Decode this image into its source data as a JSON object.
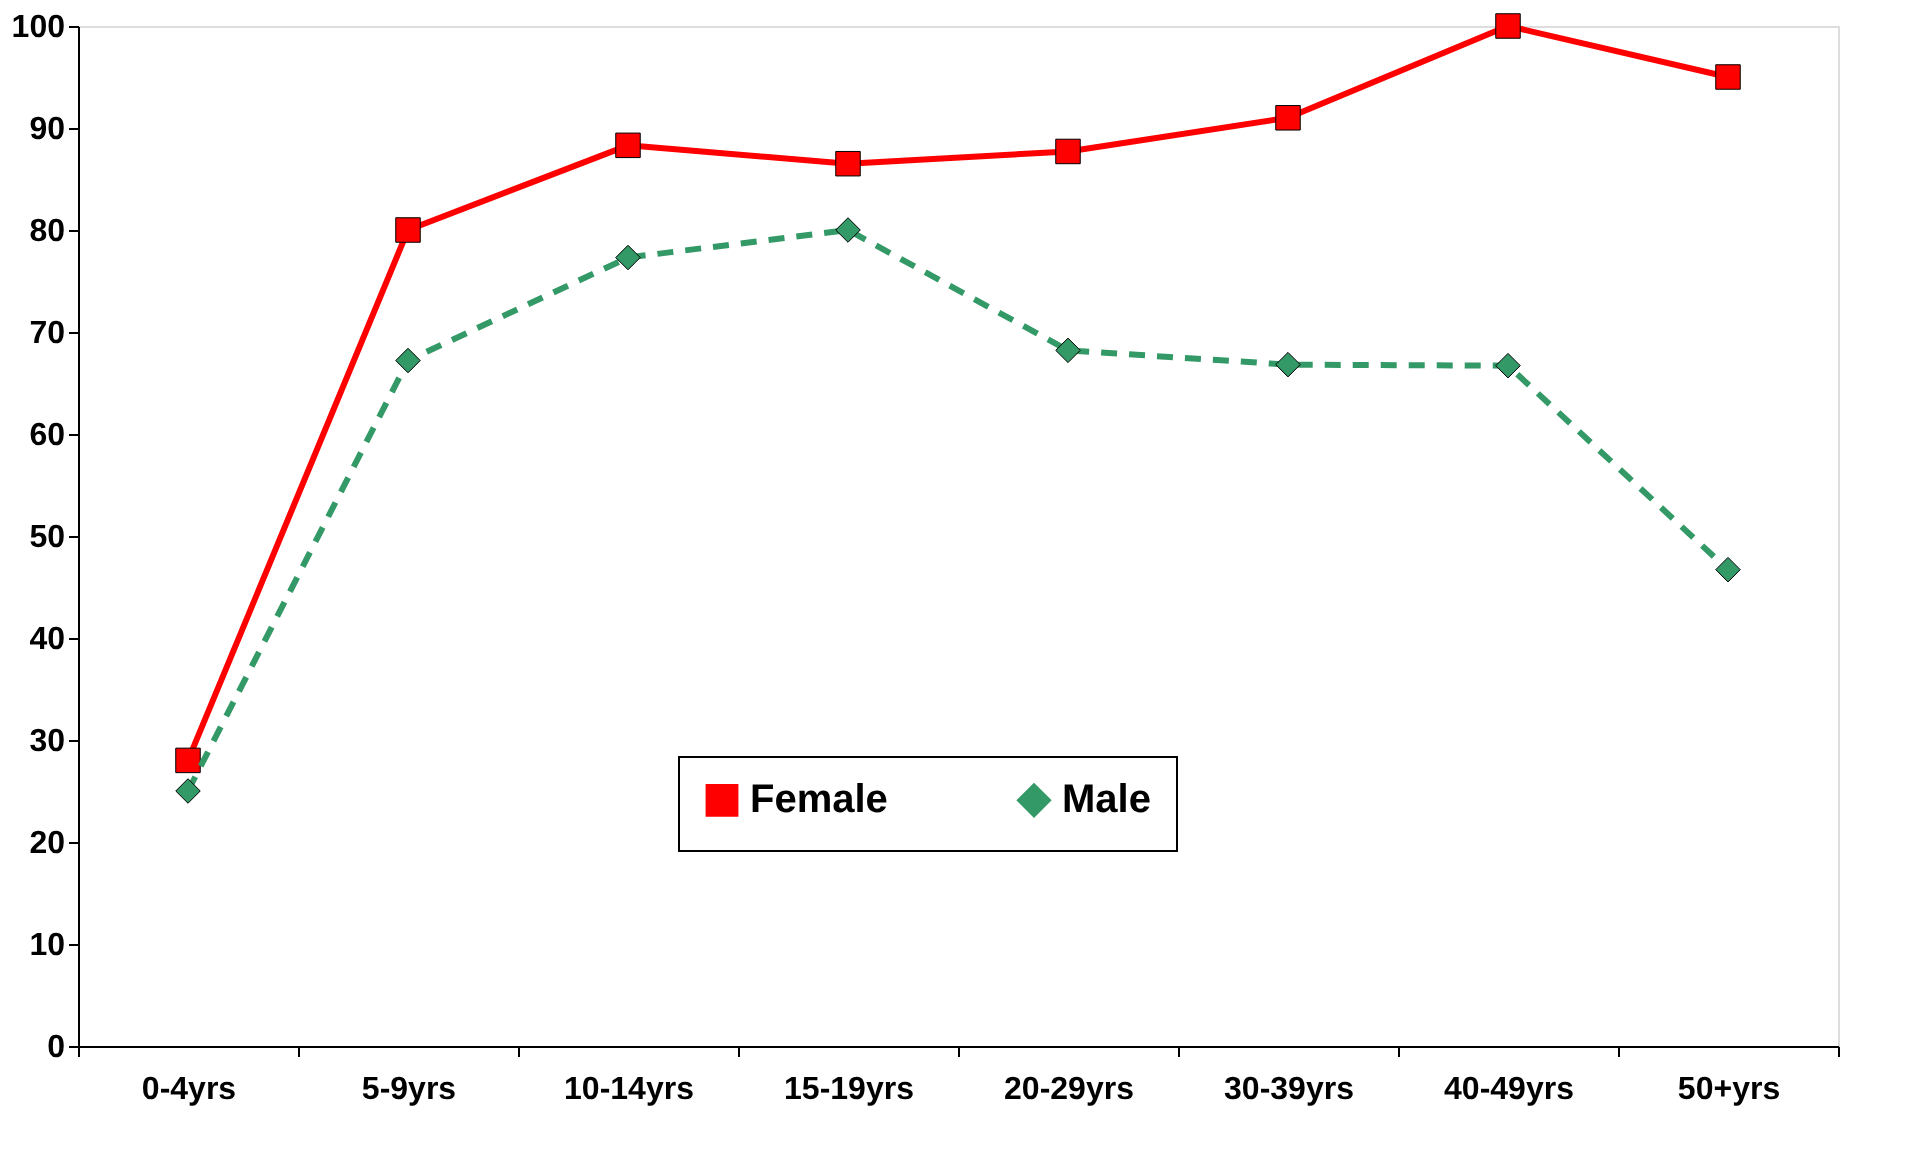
{
  "chart_data": {
    "type": "line",
    "categories": [
      "0-4yrs",
      "5-9yrs",
      "10-14yrs",
      "15-19yrs",
      "20-29yrs",
      "30-39yrs",
      "40-49yrs",
      "50+yrs"
    ],
    "series": [
      {
        "name": "Female",
        "color": "#ff0000",
        "marker": "square",
        "line_style": "solid",
        "values": [
          28,
          80,
          88.3,
          86.5,
          87.7,
          91,
          100,
          95
        ]
      },
      {
        "name": "Male",
        "color": "#339966",
        "marker": "diamond",
        "line_style": "dashed",
        "values": [
          25,
          67.2,
          77.3,
          80,
          68.2,
          66.8,
          66.7,
          46.7
        ]
      }
    ],
    "ylim": [
      0,
      100
    ],
    "yticks": [
      0,
      10,
      20,
      30,
      40,
      50,
      60,
      70,
      80,
      90,
      100
    ],
    "grid": false,
    "legend": "bottom"
  }
}
